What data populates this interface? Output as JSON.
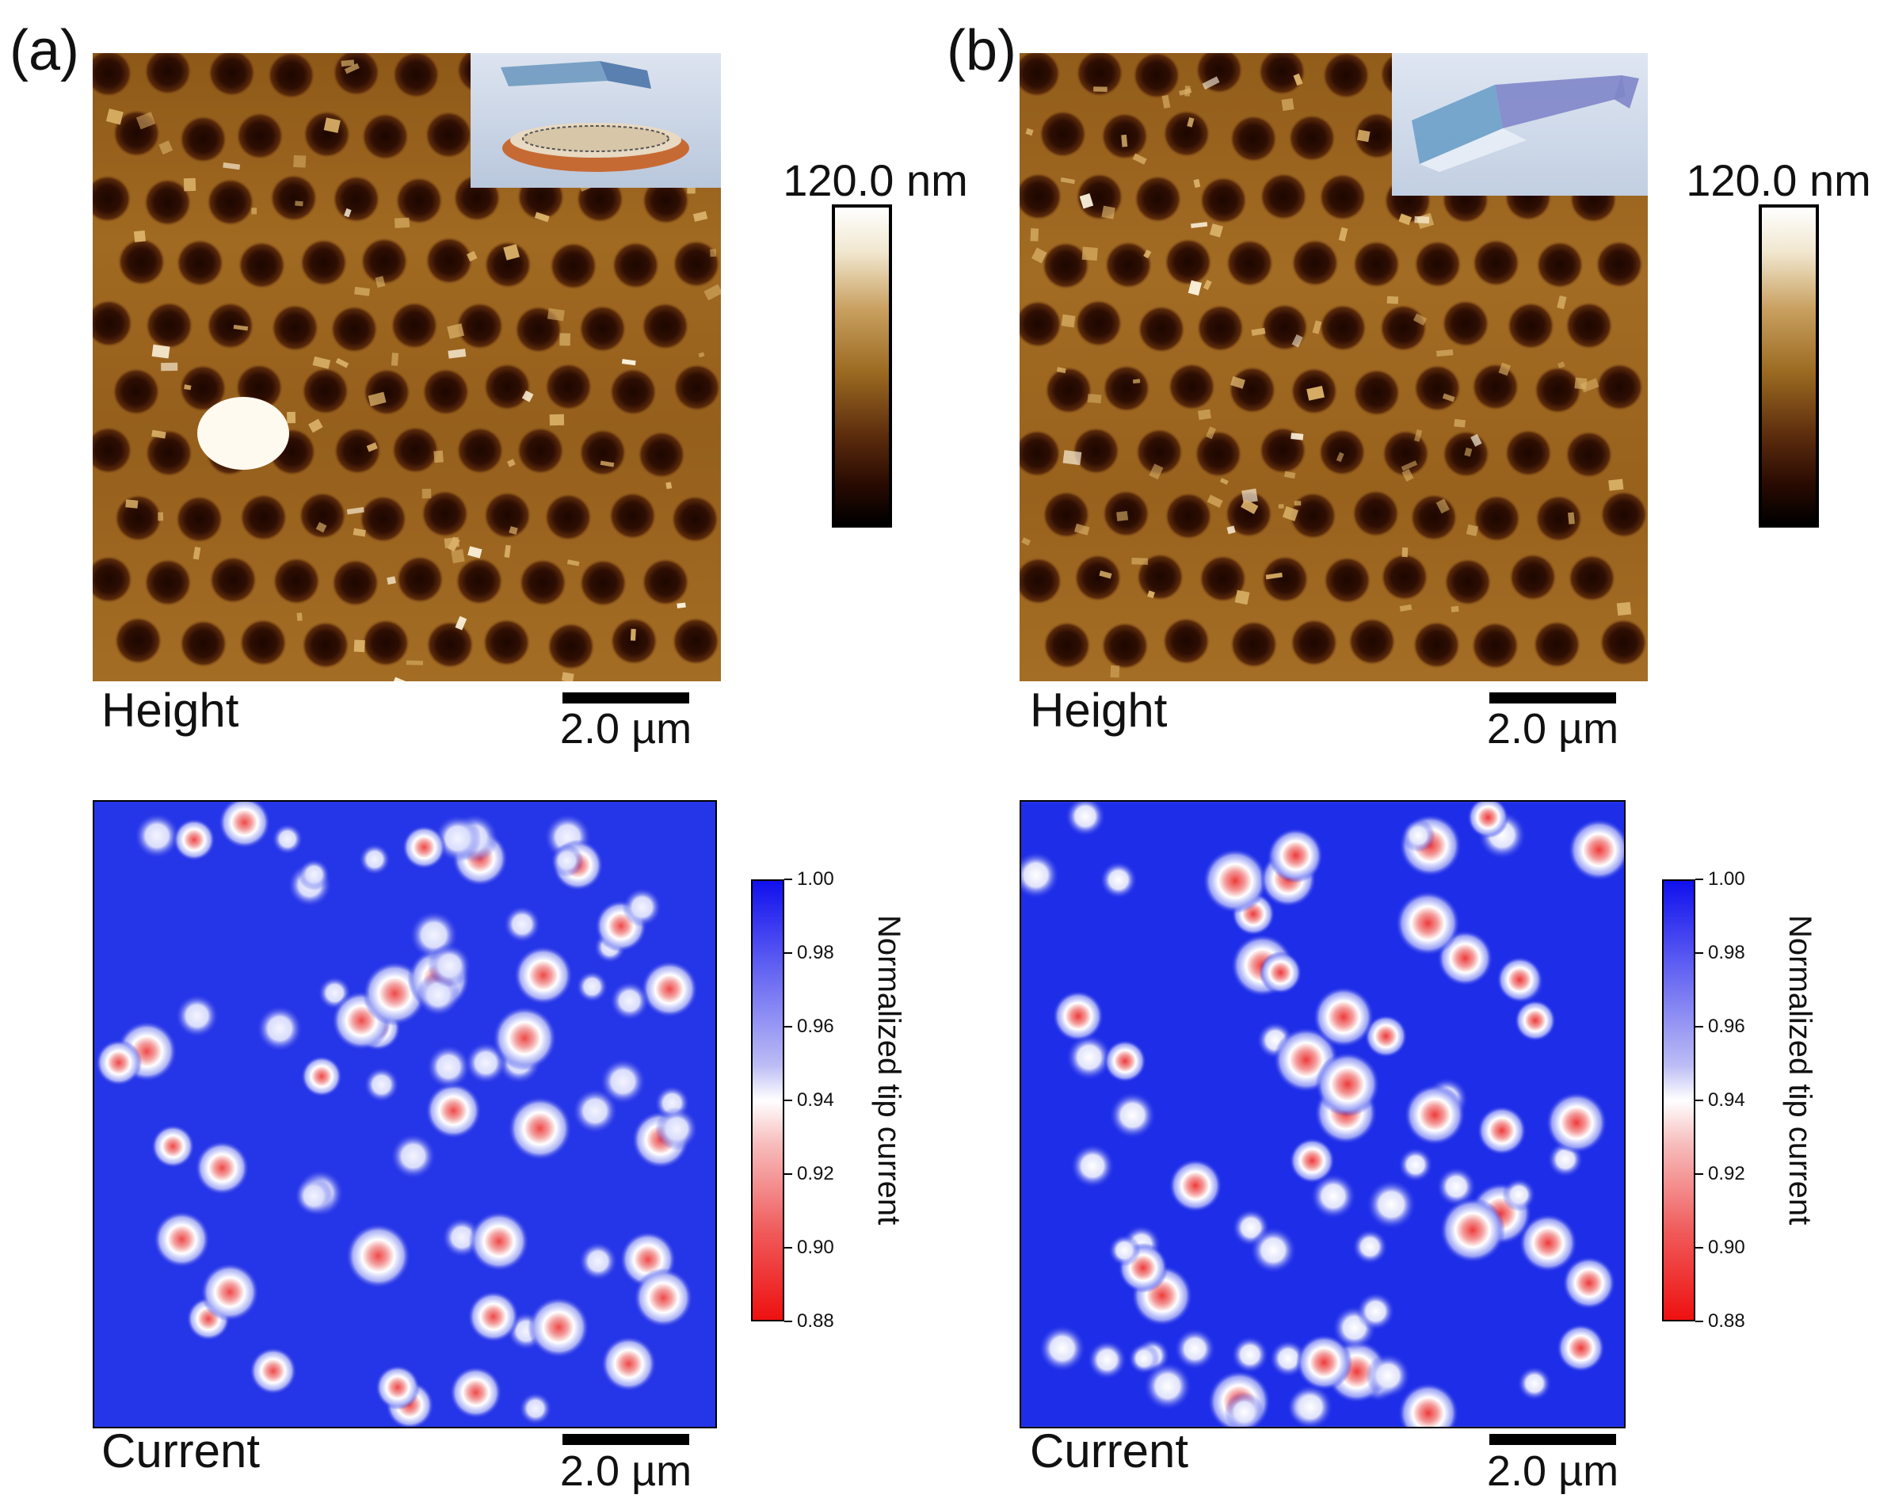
{
  "panels": [
    {
      "letter": "(a)",
      "height_caption": "Height",
      "current_caption": "Current",
      "scalebar_label": "2.0 µm",
      "height_colorbar_label": "120.0 nm",
      "current_colorbar_title": "Normalized tip current",
      "current_colorbar_ticks": [
        "1.00",
        "0.98",
        "0.96",
        "0.94",
        "0.92",
        "0.90",
        "0.88"
      ]
    },
    {
      "letter": "(b)",
      "height_caption": "Height",
      "current_caption": "Current",
      "scalebar_label": "2.0 µm",
      "height_colorbar_label": "120.0 nm",
      "current_colorbar_title": "Normalized tip current",
      "current_colorbar_ticks": [
        "1.00",
        "0.98",
        "0.96",
        "0.94",
        "0.92",
        "0.90",
        "0.88"
      ]
    }
  ],
  "colors": {
    "height_map_base": "#9a641f",
    "height_pit": "#2a0b02",
    "height_particle": "#f0d48a",
    "current_map_base": "#1f2fe6",
    "current_spot_core": "#ee2222",
    "current_spot_halo": "#ffffff"
  }
}
